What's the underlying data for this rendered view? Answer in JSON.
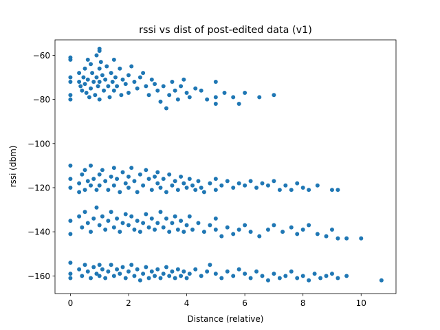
{
  "chart_data": {
    "type": "scatter",
    "title": "rssi vs dist of post-edited data (v1)",
    "xlabel": "Distance (relative)",
    "ylabel": "rssi (dbm)",
    "xlim": [
      -0.53,
      11.2
    ],
    "ylim": [
      -168,
      -53
    ],
    "xticks": [
      0,
      2,
      4,
      6,
      8,
      10
    ],
    "yticks": [
      -160,
      -140,
      -120,
      -100,
      -80,
      -60
    ],
    "xtick_labels": [
      "0",
      "2",
      "4",
      "6",
      "8",
      "10"
    ],
    "ytick_labels": [
      "−160",
      "−140",
      "−120",
      "−100",
      "−80",
      "−60"
    ],
    "grid": false,
    "series": [
      {
        "color": "#1f77b4",
        "points": [
          [
            0.0,
            -61
          ],
          [
            0.0,
            -62
          ],
          [
            0.0,
            -70
          ],
          [
            0.0,
            -72
          ],
          [
            0.0,
            -78
          ],
          [
            0.0,
            -80
          ],
          [
            0.3,
            -68
          ],
          [
            0.3,
            -72
          ],
          [
            0.35,
            -74
          ],
          [
            0.4,
            -76
          ],
          [
            0.45,
            -70
          ],
          [
            0.5,
            -66
          ],
          [
            0.5,
            -73
          ],
          [
            0.55,
            -77
          ],
          [
            0.6,
            -62
          ],
          [
            0.6,
            -71
          ],
          [
            0.65,
            -79
          ],
          [
            0.7,
            -64
          ],
          [
            0.7,
            -75
          ],
          [
            0.75,
            -68
          ],
          [
            0.8,
            -72
          ],
          [
            0.85,
            -78
          ],
          [
            0.9,
            -60
          ],
          [
            0.9,
            -70
          ],
          [
            0.95,
            -74
          ],
          [
            1.0,
            -57
          ],
          [
            1.0,
            -58
          ],
          [
            1.0,
            -66
          ],
          [
            1.0,
            -72
          ],
          [
            1.0,
            -80
          ],
          [
            1.05,
            -63
          ],
          [
            1.1,
            -69
          ],
          [
            1.15,
            -76
          ],
          [
            1.2,
            -71
          ],
          [
            1.25,
            -65
          ],
          [
            1.3,
            -74
          ],
          [
            1.35,
            -79
          ],
          [
            1.4,
            -68
          ],
          [
            1.45,
            -72
          ],
          [
            1.5,
            -62
          ],
          [
            1.5,
            -76
          ],
          [
            1.55,
            -70
          ],
          [
            1.6,
            -74
          ],
          [
            1.7,
            -66
          ],
          [
            1.75,
            -78
          ],
          [
            1.8,
            -71
          ],
          [
            1.9,
            -73
          ],
          [
            2.0,
            -69
          ],
          [
            2.0,
            -77
          ],
          [
            2.1,
            -65
          ],
          [
            2.2,
            -72
          ],
          [
            2.3,
            -75
          ],
          [
            2.4,
            -70
          ],
          [
            2.5,
            -68
          ],
          [
            2.6,
            -74
          ],
          [
            2.7,
            -78
          ],
          [
            2.8,
            -71
          ],
          [
            2.9,
            -73
          ],
          [
            3.0,
            -76
          ],
          [
            3.1,
            -81
          ],
          [
            3.2,
            -74
          ],
          [
            3.3,
            -84
          ],
          [
            3.4,
            -78
          ],
          [
            3.5,
            -72
          ],
          [
            3.6,
            -76
          ],
          [
            3.7,
            -80
          ],
          [
            3.8,
            -74
          ],
          [
            3.9,
            -71
          ],
          [
            4.0,
            -77
          ],
          [
            4.1,
            -79
          ],
          [
            4.3,
            -75
          ],
          [
            4.5,
            -76
          ],
          [
            4.7,
            -80
          ],
          [
            5.0,
            -72
          ],
          [
            5.0,
            -79
          ],
          [
            5.0,
            -82
          ],
          [
            5.3,
            -77
          ],
          [
            5.6,
            -79
          ],
          [
            5.8,
            -82
          ],
          [
            6.0,
            -77
          ],
          [
            6.5,
            -79
          ],
          [
            7.0,
            -78
          ],
          [
            0.0,
            -110
          ],
          [
            0.0,
            -116
          ],
          [
            0.0,
            -120
          ],
          [
            0.3,
            -118
          ],
          [
            0.3,
            -122
          ],
          [
            0.4,
            -114
          ],
          [
            0.5,
            -112
          ],
          [
            0.5,
            -121
          ],
          [
            0.6,
            -117
          ],
          [
            0.7,
            -110
          ],
          [
            0.7,
            -119
          ],
          [
            0.8,
            -116
          ],
          [
            0.9,
            -121
          ],
          [
            1.0,
            -114
          ],
          [
            1.0,
            -119
          ],
          [
            1.1,
            -112
          ],
          [
            1.2,
            -117
          ],
          [
            1.3,
            -121
          ],
          [
            1.4,
            -115
          ],
          [
            1.5,
            -111
          ],
          [
            1.5,
            -119
          ],
          [
            1.6,
            -116
          ],
          [
            1.7,
            -122
          ],
          [
            1.8,
            -113
          ],
          [
            1.9,
            -118
          ],
          [
            2.0,
            -115
          ],
          [
            2.0,
            -120
          ],
          [
            2.1,
            -111
          ],
          [
            2.2,
            -117
          ],
          [
            2.3,
            -122
          ],
          [
            2.4,
            -114
          ],
          [
            2.5,
            -119
          ],
          [
            2.6,
            -112
          ],
          [
            2.7,
            -116
          ],
          [
            2.8,
            -121
          ],
          [
            2.9,
            -115
          ],
          [
            3.0,
            -118
          ],
          [
            3.0,
            -113
          ],
          [
            3.1,
            -120
          ],
          [
            3.2,
            -116
          ],
          [
            3.3,
            -122
          ],
          [
            3.4,
            -114
          ],
          [
            3.5,
            -119
          ],
          [
            3.6,
            -117
          ],
          [
            3.7,
            -121
          ],
          [
            3.8,
            -115
          ],
          [
            3.9,
            -118
          ],
          [
            4.0,
            -120
          ],
          [
            4.1,
            -116
          ],
          [
            4.2,
            -119
          ],
          [
            4.3,
            -121
          ],
          [
            4.4,
            -117
          ],
          [
            4.5,
            -120
          ],
          [
            4.6,
            -122
          ],
          [
            4.8,
            -118
          ],
          [
            5.0,
            -116
          ],
          [
            5.0,
            -121
          ],
          [
            5.2,
            -119
          ],
          [
            5.4,
            -117
          ],
          [
            5.6,
            -120
          ],
          [
            5.8,
            -118
          ],
          [
            6.0,
            -119
          ],
          [
            6.2,
            -117
          ],
          [
            6.4,
            -120
          ],
          [
            6.6,
            -118
          ],
          [
            6.8,
            -119
          ],
          [
            7.0,
            -117
          ],
          [
            7.2,
            -121
          ],
          [
            7.4,
            -119
          ],
          [
            7.6,
            -121
          ],
          [
            7.8,
            -118
          ],
          [
            8.0,
            -120
          ],
          [
            8.2,
            -121
          ],
          [
            8.5,
            -119
          ],
          [
            9.0,
            -121
          ],
          [
            9.2,
            -121
          ],
          [
            0.0,
            -135
          ],
          [
            0.0,
            -141
          ],
          [
            0.3,
            -133
          ],
          [
            0.4,
            -138
          ],
          [
            0.5,
            -131
          ],
          [
            0.6,
            -136
          ],
          [
            0.7,
            -140
          ],
          [
            0.8,
            -134
          ],
          [
            0.9,
            -129
          ],
          [
            1.0,
            -137
          ],
          [
            1.1,
            -133
          ],
          [
            1.2,
            -139
          ],
          [
            1.3,
            -135
          ],
          [
            1.4,
            -131
          ],
          [
            1.5,
            -138
          ],
          [
            1.6,
            -134
          ],
          [
            1.7,
            -140
          ],
          [
            1.8,
            -136
          ],
          [
            1.9,
            -132
          ],
          [
            2.0,
            -137
          ],
          [
            2.1,
            -133
          ],
          [
            2.2,
            -139
          ],
          [
            2.3,
            -135
          ],
          [
            2.4,
            -140
          ],
          [
            2.5,
            -136
          ],
          [
            2.6,
            -132
          ],
          [
            2.7,
            -138
          ],
          [
            2.8,
            -134
          ],
          [
            2.9,
            -139
          ],
          [
            3.0,
            -136
          ],
          [
            3.1,
            -131
          ],
          [
            3.2,
            -138
          ],
          [
            3.3,
            -134
          ],
          [
            3.4,
            -140
          ],
          [
            3.5,
            -136
          ],
          [
            3.6,
            -133
          ],
          [
            3.7,
            -139
          ],
          [
            3.8,
            -135
          ],
          [
            3.9,
            -140
          ],
          [
            4.0,
            -137
          ],
          [
            4.1,
            -133
          ],
          [
            4.2,
            -139
          ],
          [
            4.4,
            -136
          ],
          [
            4.6,
            -140
          ],
          [
            4.8,
            -137
          ],
          [
            5.0,
            -139
          ],
          [
            5.0,
            -134
          ],
          [
            5.2,
            -142
          ],
          [
            5.4,
            -138
          ],
          [
            5.6,
            -141
          ],
          [
            5.8,
            -139
          ],
          [
            6.0,
            -137
          ],
          [
            6.2,
            -140
          ],
          [
            6.5,
            -142
          ],
          [
            6.8,
            -139
          ],
          [
            7.0,
            -137
          ],
          [
            7.3,
            -140
          ],
          [
            7.6,
            -138
          ],
          [
            7.8,
            -141
          ],
          [
            8.0,
            -139
          ],
          [
            8.2,
            -137
          ],
          [
            8.5,
            -141
          ],
          [
            8.8,
            -142
          ],
          [
            9.0,
            -139
          ],
          [
            9.2,
            -143
          ],
          [
            9.5,
            -143
          ],
          [
            10.0,
            -143
          ],
          [
            0.0,
            -154
          ],
          [
            0.0,
            -159
          ],
          [
            0.0,
            -161
          ],
          [
            0.3,
            -157
          ],
          [
            0.4,
            -160
          ],
          [
            0.5,
            -155
          ],
          [
            0.6,
            -158
          ],
          [
            0.7,
            -161
          ],
          [
            0.8,
            -156
          ],
          [
            0.9,
            -159
          ],
          [
            1.0,
            -155
          ],
          [
            1.0,
            -160
          ],
          [
            1.1,
            -157
          ],
          [
            1.2,
            -161
          ],
          [
            1.3,
            -158
          ],
          [
            1.4,
            -155
          ],
          [
            1.5,
            -160
          ],
          [
            1.6,
            -157
          ],
          [
            1.7,
            -159
          ],
          [
            1.8,
            -156
          ],
          [
            1.9,
            -161
          ],
          [
            2.0,
            -158
          ],
          [
            2.1,
            -155
          ],
          [
            2.2,
            -160
          ],
          [
            2.3,
            -157
          ],
          [
            2.4,
            -162
          ],
          [
            2.5,
            -159
          ],
          [
            2.6,
            -156
          ],
          [
            2.7,
            -161
          ],
          [
            2.8,
            -158
          ],
          [
            2.9,
            -160
          ],
          [
            3.0,
            -157
          ],
          [
            3.1,
            -161
          ],
          [
            3.2,
            -159
          ],
          [
            3.3,
            -156
          ],
          [
            3.4,
            -160
          ],
          [
            3.5,
            -158
          ],
          [
            3.6,
            -161
          ],
          [
            3.7,
            -157
          ],
          [
            3.8,
            -160
          ],
          [
            3.9,
            -158
          ],
          [
            4.0,
            -161
          ],
          [
            4.1,
            -159
          ],
          [
            4.3,
            -157
          ],
          [
            4.5,
            -160
          ],
          [
            4.7,
            -158
          ],
          [
            4.8,
            -155
          ],
          [
            5.0,
            -159
          ],
          [
            5.2,
            -161
          ],
          [
            5.4,
            -158
          ],
          [
            5.6,
            -160
          ],
          [
            5.8,
            -157
          ],
          [
            6.0,
            -159
          ],
          [
            6.2,
            -161
          ],
          [
            6.4,
            -158
          ],
          [
            6.6,
            -160
          ],
          [
            6.8,
            -162
          ],
          [
            7.0,
            -159
          ],
          [
            7.2,
            -161
          ],
          [
            7.4,
            -160
          ],
          [
            7.6,
            -158
          ],
          [
            7.8,
            -161
          ],
          [
            8.0,
            -160
          ],
          [
            8.2,
            -162
          ],
          [
            8.4,
            -159
          ],
          [
            8.6,
            -161
          ],
          [
            8.8,
            -160
          ],
          [
            9.0,
            -159
          ],
          [
            9.2,
            -161
          ],
          [
            9.5,
            -160
          ],
          [
            10.7,
            -162
          ]
        ]
      }
    ]
  }
}
